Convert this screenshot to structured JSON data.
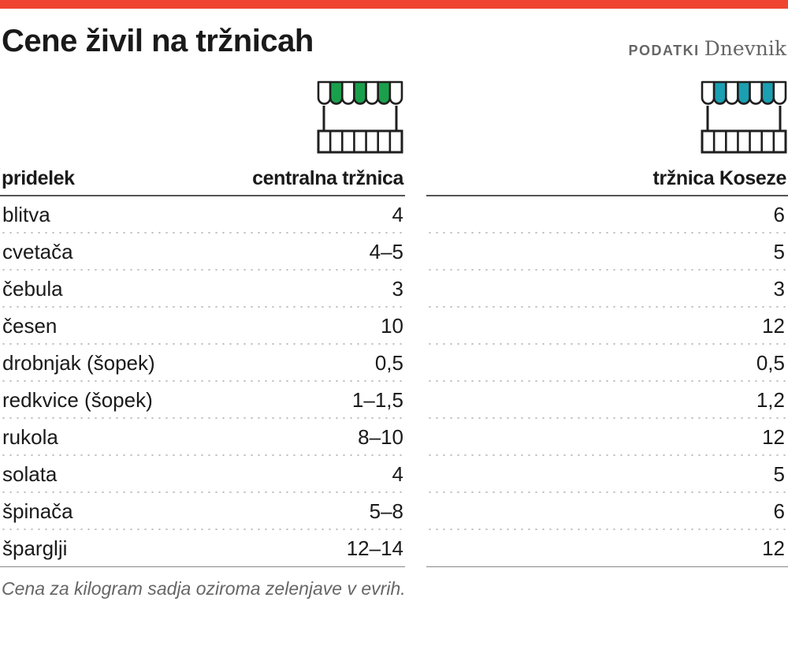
{
  "header": {
    "title": "Cene živil na tržnicah",
    "source_label": "PODATKI",
    "source_name": "Dnevnik"
  },
  "colors": {
    "top_bar": "#ee4430",
    "central_accent": "#1aa04c",
    "koseze_accent": "#1b9fb2"
  },
  "icons": {
    "central": "market-stall-green-icon",
    "koseze": "market-stall-teal-icon"
  },
  "chart_data": {
    "type": "table",
    "columns": [
      "pridelek",
      "centralna tržnica",
      "tržnica Koseze"
    ],
    "rows": [
      {
        "name": "blitva",
        "central": "4",
        "koseze": "6"
      },
      {
        "name": "cvetača",
        "central": "4–5",
        "koseze": "5"
      },
      {
        "name": "čebula",
        "central": "3",
        "koseze": "3"
      },
      {
        "name": "česen",
        "central": "10",
        "koseze": "12"
      },
      {
        "name": "drobnjak (šopek)",
        "central": "0,5",
        "koseze": "0,5"
      },
      {
        "name": "redkvice (šopek)",
        "central": "1–1,5",
        "koseze": "1,2"
      },
      {
        "name": "rukola",
        "central": "8–10",
        "koseze": "12"
      },
      {
        "name": "solata",
        "central": "4",
        "koseze": "5"
      },
      {
        "name": "špinača",
        "central": "5–8",
        "koseze": "6"
      },
      {
        "name": "šparglji",
        "central": "12–14",
        "koseze": "12"
      }
    ],
    "note": "Cena za kilogram sadja oziroma zelenjave v evrih."
  }
}
